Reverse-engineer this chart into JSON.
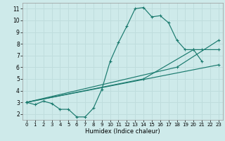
{
  "xlabel": "Humidex (Indice chaleur)",
  "xlim": [
    -0.5,
    23.5
  ],
  "ylim": [
    1.5,
    11.5
  ],
  "xticks": [
    0,
    1,
    2,
    3,
    4,
    5,
    6,
    7,
    8,
    9,
    10,
    11,
    12,
    13,
    14,
    15,
    16,
    17,
    18,
    19,
    20,
    21,
    22,
    23
  ],
  "yticks": [
    2,
    3,
    4,
    5,
    6,
    7,
    8,
    9,
    10,
    11
  ],
  "bg_color": "#ceeaea",
  "line_color": "#1a7a6e",
  "grid_color": "#bfdddd",
  "series1_x": [
    0,
    1,
    2,
    3,
    4,
    5,
    6,
    7,
    8,
    9,
    10,
    11,
    12,
    13,
    14,
    15,
    16,
    17,
    18,
    19,
    20,
    21
  ],
  "series1_y": [
    3.0,
    2.8,
    3.1,
    2.9,
    2.4,
    2.4,
    1.75,
    1.75,
    2.5,
    4.1,
    6.5,
    8.1,
    9.5,
    11.0,
    11.1,
    10.3,
    10.4,
    9.8,
    8.3,
    7.5,
    7.5,
    6.5
  ],
  "series2_x": [
    0,
    23
  ],
  "series2_y": [
    3.0,
    6.2
  ],
  "series3_x": [
    0,
    14,
    20,
    21,
    23
  ],
  "series3_y": [
    3.0,
    5.0,
    7.5,
    7.5,
    7.5
  ],
  "series4_x": [
    0,
    18,
    23
  ],
  "series4_y": [
    3.0,
    6.0,
    8.3
  ]
}
